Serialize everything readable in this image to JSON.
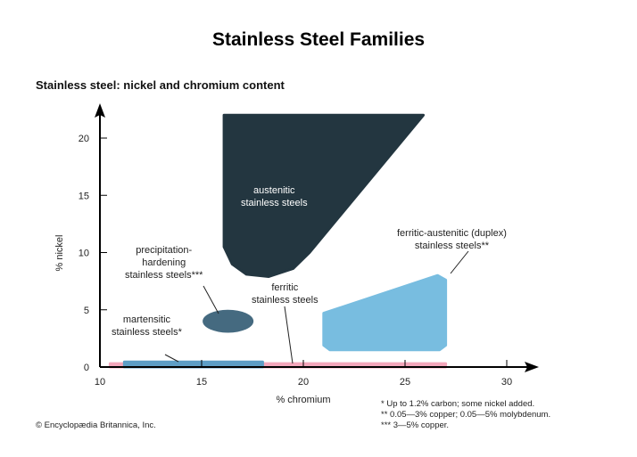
{
  "chart_data": {
    "type": "area",
    "title": "Stainless Steel Families",
    "subtitle": "Stainless steel: nickel and chromium content",
    "xlabel": "% chromium",
    "ylabel": "% nickel",
    "xlim": [
      10,
      31.5
    ],
    "ylim": [
      0,
      22
    ],
    "xticks": [
      10,
      15,
      20,
      25,
      30
    ],
    "yticks": [
      0,
      5,
      10,
      15,
      20
    ],
    "regions": [
      {
        "name": "ferritic",
        "label": "ferritic stainless steels",
        "color": "#f4a6bb",
        "points": [
          [
            10.5,
            0
          ],
          [
            27,
            0
          ],
          [
            27,
            0.3
          ],
          [
            10.5,
            0.3
          ]
        ]
      },
      {
        "name": "martensitic",
        "label": "martensitic stainless steels*",
        "color": "#5d9ec6",
        "points": [
          [
            11.2,
            0
          ],
          [
            18,
            0
          ],
          [
            18,
            0.45
          ],
          [
            11.2,
            0.45
          ]
        ]
      },
      {
        "name": "austenitic",
        "label": "austenitic stainless steels",
        "color": "#233640",
        "points": [
          [
            16.1,
            22
          ],
          [
            25.9,
            22
          ],
          [
            20.3,
            10
          ],
          [
            19.5,
            8.6
          ],
          [
            18.3,
            7.9
          ],
          [
            17.2,
            8.1
          ],
          [
            16.5,
            9
          ],
          [
            16.1,
            10.5
          ]
        ]
      },
      {
        "name": "duplex",
        "label": "ferritic-austenitic (duplex) stainless steels**",
        "color": "#78bde0",
        "points": [
          [
            21,
            4.7
          ],
          [
            26.6,
            8
          ],
          [
            27,
            7.6
          ],
          [
            27,
            1.9
          ],
          [
            26.7,
            1.5
          ],
          [
            21.3,
            1.5
          ],
          [
            21,
            1.9
          ]
        ]
      },
      {
        "name": "precipitation-hardening",
        "label": "precipitation-hardening stainless steels***",
        "color": "#456a80",
        "ellipse": {
          "cx": 16.3,
          "cy": 4.0,
          "rx": 1.25,
          "ry": 1.0
        }
      }
    ]
  },
  "labels": {
    "austenitic": [
      "austenitic",
      "stainless steels"
    ],
    "duplex": [
      "ferritic-austenitic (duplex)",
      "stainless steels**"
    ],
    "precip": [
      "precipitation-",
      "hardening",
      "stainless steels***"
    ],
    "ferritic": [
      "ferritic",
      "stainless steels"
    ],
    "martensitic": [
      "martensitic",
      "stainless steels*"
    ]
  },
  "notes": [
    "* Up to 1.2% carbon; some nickel added.",
    "** 0.05—3% copper; 0.05—5% molybdenum.",
    "*** 3—5% copper."
  ],
  "credit": "© Encyclopædia Britannica, Inc."
}
